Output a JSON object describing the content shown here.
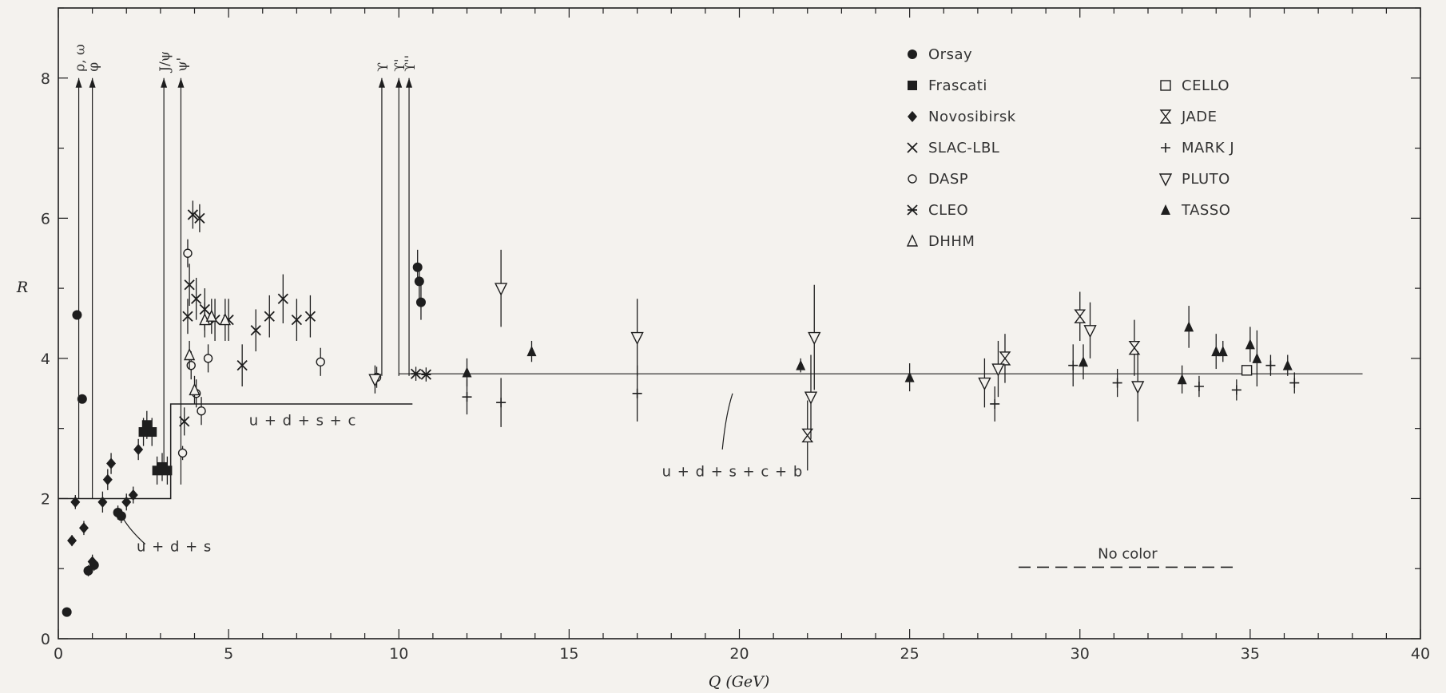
{
  "chart_data": {
    "type": "scatter",
    "xlabel": "Q (GeV)",
    "ylabel": "R",
    "xlim": [
      0,
      40
    ],
    "ylim": [
      0,
      9
    ],
    "xticks": [
      0,
      5,
      10,
      15,
      20,
      25,
      30,
      35,
      40
    ],
    "yticks": [
      0,
      2,
      4,
      6,
      8
    ],
    "grid": false,
    "legend_position": "top-right",
    "legend": [
      {
        "name": "Orsay",
        "marker": "circle-filled"
      },
      {
        "name": "Frascati",
        "marker": "square-filled"
      },
      {
        "name": "Novosibirsk",
        "marker": "diamond-filled"
      },
      {
        "name": "SLAC-LBL",
        "marker": "cross-x"
      },
      {
        "name": "DASP",
        "marker": "circle-open"
      },
      {
        "name": "CLEO",
        "marker": "cross-x-bar"
      },
      {
        "name": "DHHM",
        "marker": "triangle-open"
      },
      {
        "name": "CELLO",
        "marker": "square-open"
      },
      {
        "name": "JADE",
        "marker": "hourglass"
      },
      {
        "name": "MARK J",
        "marker": "plus"
      },
      {
        "name": "PLUTO",
        "marker": "triangle-down-open"
      },
      {
        "name": "TASSO",
        "marker": "triangle-filled"
      }
    ],
    "resonances": [
      {
        "label": "ρ, ω",
        "x": 0.6
      },
      {
        "label": "φ",
        "x": 1.0
      },
      {
        "label": "J/ψ",
        "x": 3.1
      },
      {
        "label": "ψ'",
        "x": 3.6
      },
      {
        "label": "ϒ",
        "x": 9.5
      },
      {
        "label": "ϒ'",
        "x": 10.0
      },
      {
        "label": "ϒ''",
        "x": 10.3
      }
    ],
    "resonance_arrow_top": 8.0,
    "quark_steps": [
      {
        "label": "u + d + s",
        "x": [
          0,
          3.3
        ],
        "y": 2.0
      },
      {
        "label": "u + d + s + c",
        "x": [
          3.4,
          10.4
        ],
        "y": 3.35
      },
      {
        "label": "u + d + s + c + b",
        "x": [
          10.0,
          38.3
        ],
        "y": 3.78
      }
    ],
    "no_color": {
      "label": "No color",
      "x": [
        28.2,
        34.6
      ],
      "y": 1.02
    },
    "series": [
      {
        "name": "Orsay",
        "points": [
          [
            0.25,
            0.38,
            0.05
          ],
          [
            0.55,
            4.62,
            0.05
          ],
          [
            0.7,
            3.42,
            0.05
          ],
          [
            0.88,
            0.97,
            0.08
          ],
          [
            1.05,
            1.05,
            0.08
          ],
          [
            1.75,
            1.8,
            0.1
          ],
          [
            1.85,
            1.75,
            0.1
          ],
          [
            10.55,
            5.3,
            0.25
          ],
          [
            10.6,
            5.1,
            0.25
          ],
          [
            10.65,
            4.8,
            0.25
          ]
        ]
      },
      {
        "name": "Frascati",
        "points": [
          [
            2.5,
            2.95,
            0.2
          ],
          [
            2.6,
            3.05,
            0.2
          ],
          [
            2.75,
            2.95,
            0.2
          ],
          [
            2.9,
            2.4,
            0.2
          ],
          [
            3.05,
            2.45,
            0.2
          ],
          [
            3.2,
            2.4,
            0.2
          ]
        ]
      },
      {
        "name": "Novosibirsk",
        "points": [
          [
            0.4,
            1.4,
            0.08
          ],
          [
            0.5,
            1.95,
            0.1
          ],
          [
            0.75,
            1.58,
            0.1
          ],
          [
            1.0,
            1.1,
            0.1
          ],
          [
            1.3,
            1.95,
            0.15
          ],
          [
            1.45,
            2.27,
            0.15
          ],
          [
            1.55,
            2.5,
            0.15
          ],
          [
            2.0,
            1.95,
            0.12
          ],
          [
            2.2,
            2.05,
            0.12
          ],
          [
            2.35,
            2.7,
            0.15
          ]
        ]
      },
      {
        "name": "SLAC-LBL",
        "points": [
          [
            3.7,
            3.1,
            0.2
          ],
          [
            3.8,
            4.6,
            0.25
          ],
          [
            3.85,
            5.05,
            0.3
          ],
          [
            3.95,
            6.05,
            0.2
          ],
          [
            4.05,
            4.85,
            0.3
          ],
          [
            4.15,
            6.0,
            0.2
          ],
          [
            4.3,
            4.7,
            0.3
          ],
          [
            4.6,
            4.55,
            0.3
          ],
          [
            5.0,
            4.55,
            0.3
          ],
          [
            5.4,
            3.9,
            0.3
          ],
          [
            5.8,
            4.4,
            0.3
          ],
          [
            6.2,
            4.6,
            0.3
          ],
          [
            6.6,
            4.85,
            0.35
          ],
          [
            7.0,
            4.55,
            0.3
          ],
          [
            7.4,
            4.6,
            0.3
          ]
        ]
      },
      {
        "name": "DASP",
        "points": [
          [
            3.65,
            2.65,
            0.1
          ],
          [
            3.8,
            5.5,
            0.2
          ],
          [
            3.9,
            3.9,
            0.2
          ],
          [
            4.05,
            3.5,
            0.2
          ],
          [
            4.2,
            3.25,
            0.2
          ],
          [
            4.4,
            4.0,
            0.2
          ],
          [
            7.7,
            3.95,
            0.2
          ],
          [
            9.35,
            3.73,
            0.15
          ]
        ]
      },
      {
        "name": "CLEO",
        "points": [
          [
            10.5,
            3.78,
            0.1
          ],
          [
            10.8,
            3.77,
            0.1
          ]
        ]
      },
      {
        "name": "DHHM",
        "points": [
          [
            3.85,
            4.05,
            0.2
          ],
          [
            4.0,
            3.55,
            0.2
          ],
          [
            4.3,
            4.55,
            0.25
          ],
          [
            4.5,
            4.6,
            0.25
          ],
          [
            4.9,
            4.55,
            0.3
          ]
        ]
      },
      {
        "name": "CELLO",
        "points": [
          [
            34.9,
            3.83,
            0.05
          ]
        ]
      },
      {
        "name": "JADE",
        "points": [
          [
            22.0,
            2.9,
            0.5
          ],
          [
            27.8,
            4.0,
            0.35
          ],
          [
            30.0,
            4.6,
            0.35
          ],
          [
            31.6,
            4.15,
            0.4
          ]
        ]
      },
      {
        "name": "MARK J",
        "points": [
          [
            12.0,
            3.45,
            0.25
          ],
          [
            13.0,
            3.37,
            0.35
          ],
          [
            17.0,
            3.5,
            0.4
          ],
          [
            27.5,
            3.35,
            0.25
          ],
          [
            29.8,
            3.9,
            0.3
          ],
          [
            31.1,
            3.65,
            0.2
          ],
          [
            33.5,
            3.6,
            0.15
          ],
          [
            34.6,
            3.55,
            0.15
          ],
          [
            35.6,
            3.9,
            0.15
          ],
          [
            36.3,
            3.65,
            0.15
          ]
        ]
      },
      {
        "name": "PLUTO",
        "points": [
          [
            9.3,
            3.7,
            0.2
          ],
          [
            13.0,
            5.0,
            0.55
          ],
          [
            17.0,
            4.3,
            0.55
          ],
          [
            22.1,
            3.45,
            0.6
          ],
          [
            22.2,
            4.3,
            0.75
          ],
          [
            27.2,
            3.65,
            0.35
          ],
          [
            27.6,
            3.85,
            0.4
          ],
          [
            30.3,
            4.4,
            0.4
          ],
          [
            31.7,
            3.6,
            0.5
          ]
        ]
      },
      {
        "name": "TASSO",
        "points": [
          [
            12.0,
            3.8,
            0.2
          ],
          [
            13.9,
            4.1,
            0.15
          ],
          [
            21.8,
            3.9,
            0.1
          ],
          [
            25.0,
            3.73,
            0.2
          ],
          [
            30.1,
            3.95,
            0.25
          ],
          [
            33.0,
            3.7,
            0.2
          ],
          [
            33.2,
            4.45,
            0.3
          ],
          [
            34.0,
            4.1,
            0.25
          ],
          [
            34.2,
            4.1,
            0.15
          ],
          [
            35.0,
            4.2,
            0.25
          ],
          [
            35.2,
            4.0,
            0.4
          ],
          [
            36.1,
            3.9,
            0.15
          ]
        ]
      }
    ]
  }
}
